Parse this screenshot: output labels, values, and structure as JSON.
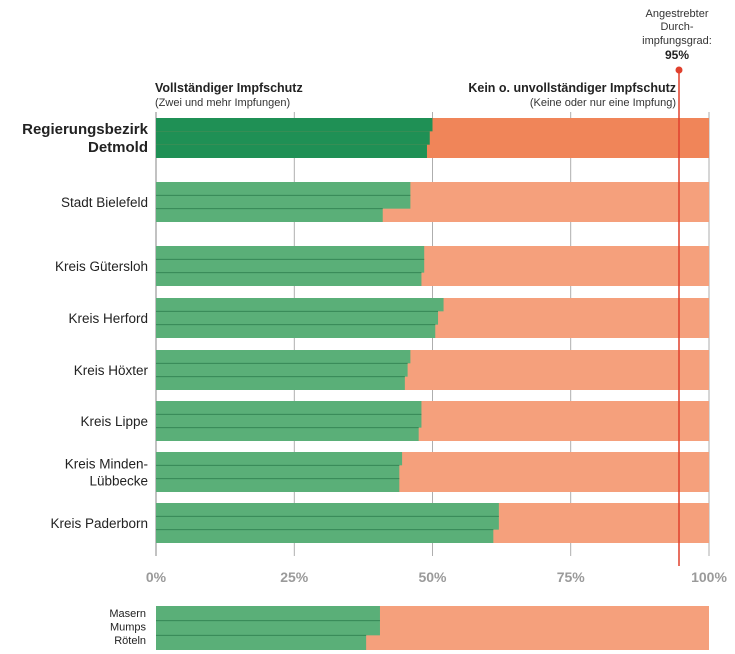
{
  "chart_data": {
    "type": "bar",
    "orientation": "horizontal",
    "stacked": true,
    "xlim": [
      0,
      100
    ],
    "x_unit": "%",
    "ticks": [
      "0%",
      "25%",
      "50%",
      "75%",
      "100%"
    ],
    "tick_values": [
      0,
      25,
      50,
      75,
      100
    ],
    "grid": true,
    "target": {
      "value": 95,
      "label_lines": [
        "Angestrebter",
        "Durch-",
        "impfungsgrad:"
      ],
      "value_label": "95%"
    },
    "series_labels": {
      "complete_title": "Vollständiger Impfschutz",
      "complete_sub": "(Zwei und mehr Impfungen)",
      "incomplete_title": "Kein o. unvollständiger Impfschutz",
      "incomplete_sub": "(Keine oder nur eine Impfung)"
    },
    "groups": [
      {
        "label": [
          "Regierungsbezirk",
          "Detmold"
        ],
        "bold": true,
        "values": [
          50,
          49.5,
          49
        ]
      },
      {
        "label": [
          "Stadt Bielefeld"
        ],
        "bold": false,
        "values": [
          46,
          46,
          41
        ]
      },
      {
        "label": [
          "Kreis Gütersloh"
        ],
        "bold": false,
        "values": [
          48.5,
          48.5,
          48
        ]
      },
      {
        "label": [
          "Kreis Herford"
        ],
        "bold": false,
        "values": [
          52,
          51,
          50.5
        ]
      },
      {
        "label": [
          "Kreis Höxter"
        ],
        "bold": false,
        "values": [
          46,
          45.5,
          45
        ]
      },
      {
        "label": [
          "Kreis Lippe"
        ],
        "bold": false,
        "values": [
          48,
          48,
          47.5
        ]
      },
      {
        "label": [
          "Kreis Minden-",
          "Lübbecke"
        ],
        "bold": false,
        "values": [
          44.5,
          44,
          44
        ]
      },
      {
        "label": [
          "Kreis Paderborn"
        ],
        "bold": false,
        "values": [
          62,
          62,
          61
        ]
      }
    ],
    "legend_sample": {
      "label": [
        "Masern",
        "Mumps",
        "Röteln"
      ],
      "values": [
        40.5,
        40.5,
        38
      ]
    },
    "colors": {
      "complete_bold": "#1f9055",
      "complete": "#5aaf78",
      "complete_divider": "#2f8050",
      "incomplete_bold": "#f08559",
      "incomplete": "#f5a07c",
      "target_line": "#e0402d",
      "grid": "#9a9a9a",
      "tick": "#9a9a9a"
    }
  }
}
